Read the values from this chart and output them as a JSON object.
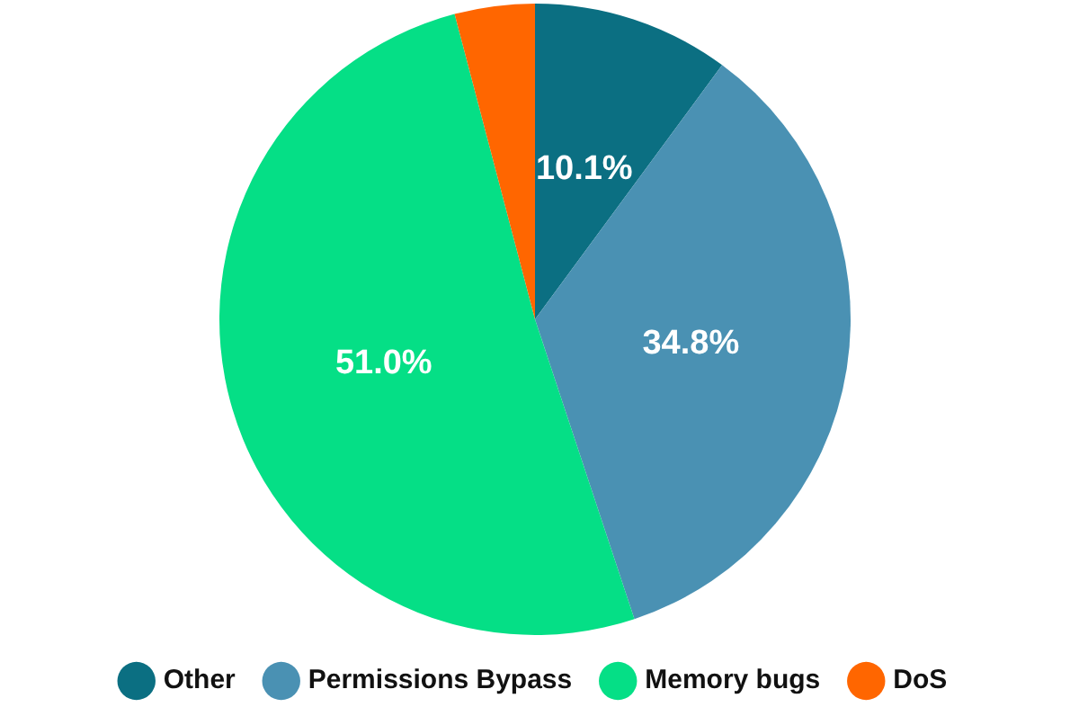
{
  "chart_data": {
    "type": "pie",
    "categories": [
      "Other",
      "Permissions Bypass",
      "Memory bugs",
      "DoS"
    ],
    "values": [
      10.1,
      34.8,
      51.0,
      4.1
    ],
    "colors": [
      "#0b6f82",
      "#4a91b3",
      "#05df86",
      "#ff6600"
    ],
    "value_labels": [
      "10.1%",
      "34.8%",
      "51.0%",
      null
    ],
    "legend": "bottom"
  }
}
